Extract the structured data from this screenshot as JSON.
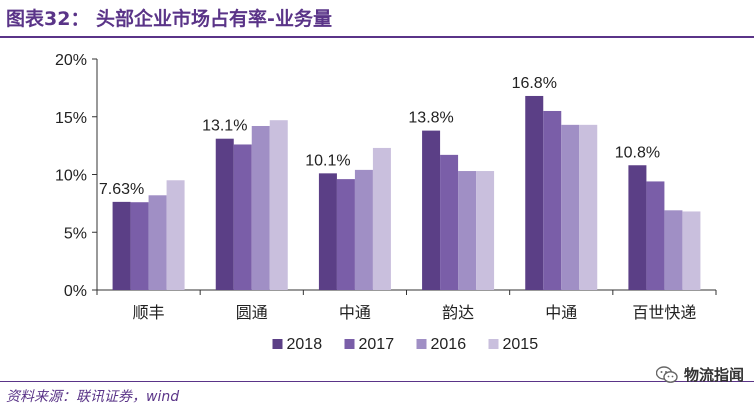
{
  "figure": {
    "title": "图表32：  头部企业市场占有率-业务量",
    "source": "资料来源：联讯证券，wind",
    "watermark": "物流指闻",
    "watermark_icon": "wechat-icon"
  },
  "colors": {
    "title": "#5a3488",
    "series": [
      "#5b3f86",
      "#7a5ea8",
      "#a08fc5",
      "#c9bfdd"
    ],
    "axis": "#333333"
  },
  "chart_data": {
    "type": "bar",
    "title": "头部企业市场占有率-业务量",
    "categories": [
      "顺丰",
      "圆通",
      "中通",
      "韵达",
      "中通",
      "百世快递"
    ],
    "series": [
      {
        "name": "2018",
        "values": [
          7.63,
          13.1,
          10.1,
          13.8,
          16.8,
          10.8
        ]
      },
      {
        "name": "2017",
        "values": [
          7.6,
          12.6,
          9.6,
          11.7,
          15.5,
          9.4
        ]
      },
      {
        "name": "2016",
        "values": [
          8.2,
          14.2,
          10.4,
          10.3,
          14.3,
          6.9
        ]
      },
      {
        "name": "2015",
        "values": [
          9.5,
          14.7,
          12.3,
          10.3,
          14.3,
          6.8
        ]
      }
    ],
    "data_labels": [
      "7.63%",
      "13.1%",
      "10.1%",
      "13.8%",
      "16.8%",
      "10.8%"
    ],
    "yticks": [
      "0%",
      "5%",
      "10%",
      "15%",
      "20%"
    ],
    "ylim": [
      0,
      20
    ],
    "ytick_step": 5,
    "xlabel": "",
    "ylabel": "",
    "legend_position": "bottom-center",
    "grid": false
  }
}
